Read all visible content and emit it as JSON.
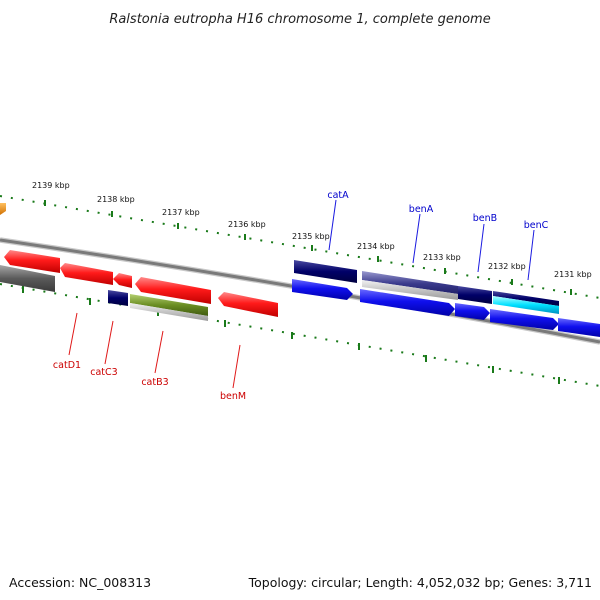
{
  "title": "Ralstonia eutropha H16 chromosome 1, complete genome",
  "footer": {
    "accession": "Accession: NC_008313",
    "summary": "Topology: circular; Length: 4,052,032 bp; Genes: 3,711"
  },
  "kbp_labels": [
    "2139 kbp",
    "2138 kbp",
    "2137 kbp",
    "2136 kbp",
    "2135 kbp",
    "2134 kbp",
    "2133 kbp",
    "2132 kbp",
    "2131 kbp"
  ],
  "gene_labels_above": [
    "catA",
    "benA",
    "benB",
    "benC"
  ],
  "gene_labels_below": [
    "catD1",
    "catC3",
    "catB3",
    "benM"
  ],
  "colors": {
    "plus_strand_label": "#0000cc",
    "minus_strand_label": "#cc0000",
    "ticks": "#1a7a1a",
    "backbone": "#8a8a8a"
  },
  "icons": {
    "red": "minus-strand-gene-icon",
    "blue": "plus-strand-gene-icon",
    "navy": "plus-strand-gene-icon",
    "orange": "partial-gene-icon"
  }
}
